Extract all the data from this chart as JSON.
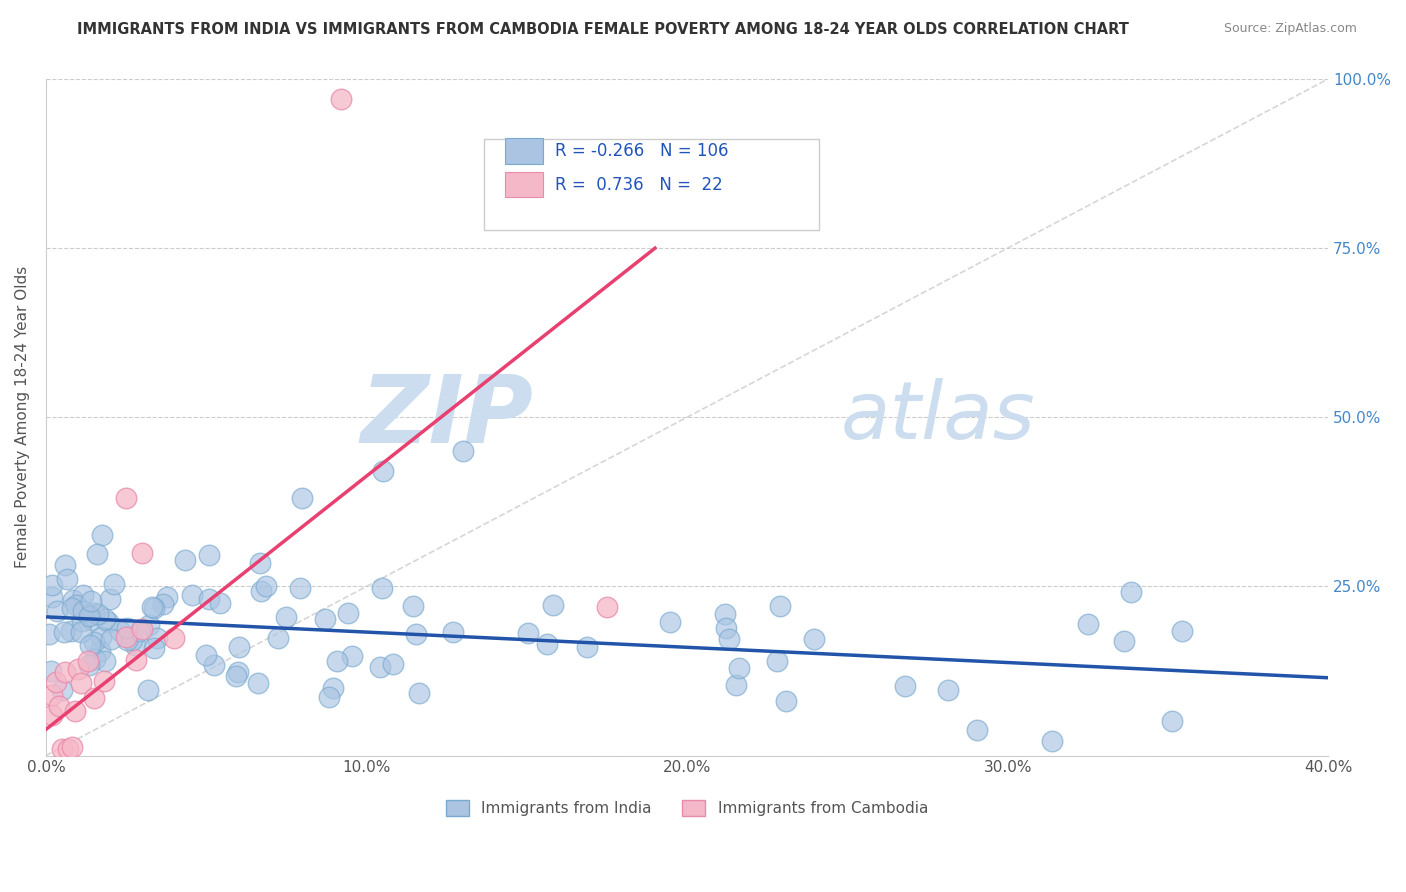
{
  "title": "IMMIGRANTS FROM INDIA VS IMMIGRANTS FROM CAMBODIA FEMALE POVERTY AMONG 18-24 YEAR OLDS CORRELATION CHART",
  "source": "Source: ZipAtlas.com",
  "ylabel": "Female Poverty Among 18-24 Year Olds",
  "xlim": [
    0.0,
    0.4
  ],
  "ylim": [
    0.0,
    1.0
  ],
  "india_R": -0.266,
  "india_N": 106,
  "cambodia_R": 0.736,
  "cambodia_N": 22,
  "india_color": "#aac4e2",
  "india_edge_color": "#7aaad0",
  "india_line_color": "#2255aa",
  "cambodia_color": "#f5b8c8",
  "cambodia_edge_color": "#e88aaa",
  "cambodia_line_color": "#e84070",
  "watermark_zip": "ZIP",
  "watermark_atlas": "atlas",
  "watermark_color": "#ccddf0",
  "diag_line_color": "#cccccc",
  "grid_color": "#cccccc",
  "india_line_x0": 0.0,
  "india_line_y0": 0.205,
  "india_line_x1": 0.4,
  "india_line_y1": 0.115,
  "cambodia_line_x0": -0.005,
  "cambodia_line_y0": 0.02,
  "cambodia_line_x1": 0.19,
  "cambodia_line_y1": 0.75
}
